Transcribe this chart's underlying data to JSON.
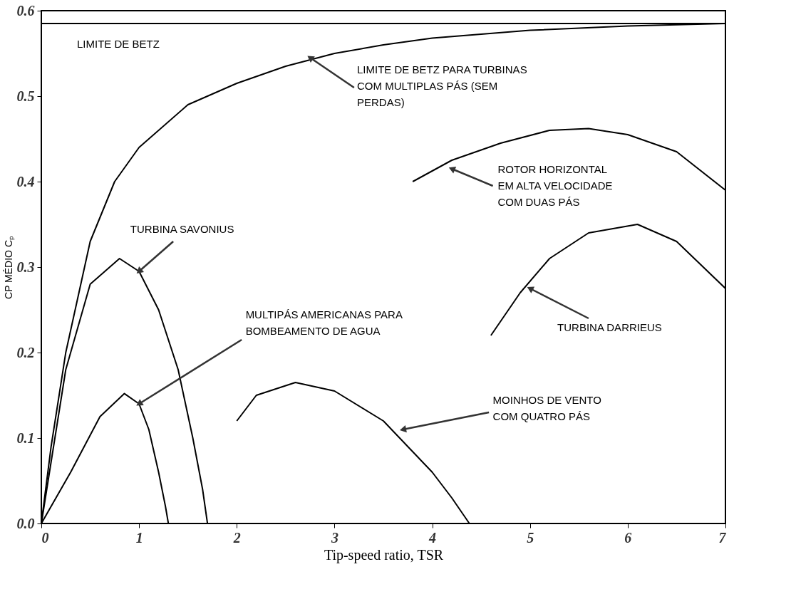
{
  "chart_data": {
    "type": "line",
    "xlabel": "Tip-speed ratio, TSR",
    "ylabel": "CP MÉDIO  Cₚ",
    "xlim": [
      0,
      7
    ],
    "xticks": [
      0,
      1,
      2,
      3,
      4,
      5,
      6,
      7
    ],
    "ylim": [
      0,
      0.6
    ],
    "yticks": [
      {
        "value": 0,
        "label": "0.0"
      },
      {
        "value": 0.1,
        "label": "0.1"
      },
      {
        "value": 0.2,
        "label": "0.2"
      },
      {
        "value": 0.3,
        "label": "0.3"
      },
      {
        "value": 0.4,
        "label": "0.4"
      },
      {
        "value": 0.5,
        "label": "0.5"
      },
      {
        "value": 0.6,
        "label": "0.6"
      }
    ],
    "grid": false,
    "legend": false,
    "marker": "none",
    "line_style": "solid",
    "series": [
      {
        "color": "#000000",
        "x": [
          0,
          0.1,
          0.25,
          0.5,
          0.75,
          1,
          1.5,
          2,
          2.5,
          3,
          3.5,
          4,
          5,
          6,
          7
        ],
        "values": [
          0,
          0.09,
          0.2,
          0.33,
          0.4,
          0.44,
          0.49,
          0.515,
          0.535,
          0.55,
          0.56,
          0.568,
          0.577,
          0.582,
          0.585
        ]
      },
      {
        "color": "#000000",
        "x": [
          0,
          0.25,
          0.5,
          0.8,
          1,
          1.2,
          1.4,
          1.55,
          1.65,
          1.7
        ],
        "values": [
          0,
          0.18,
          0.28,
          0.31,
          0.295,
          0.25,
          0.18,
          0.1,
          0.04,
          0
        ]
      },
      {
        "color": "#000000",
        "x": [
          0,
          0.3,
          0.6,
          0.85,
          1,
          1.1,
          1.2,
          1.27,
          1.3
        ],
        "values": [
          0,
          0.06,
          0.125,
          0.152,
          0.14,
          0.11,
          0.06,
          0.02,
          0
        ]
      },
      {
        "color": "#000000",
        "x": [
          2,
          2.2,
          2.6,
          3,
          3.5,
          4,
          4.2,
          4.38
        ],
        "values": [
          0.12,
          0.15,
          0.165,
          0.155,
          0.12,
          0.06,
          0.03,
          0
        ]
      },
      {
        "color": "#000000",
        "x": [
          3.8,
          4.2,
          4.7,
          5.2,
          5.6,
          6,
          6.5,
          7
        ],
        "values": [
          0.4,
          0.425,
          0.445,
          0.46,
          0.462,
          0.455,
          0.435,
          0.39
        ]
      },
      {
        "color": "#000000",
        "x": [
          4.6,
          4.9,
          5.2,
          5.6,
          6.1,
          6.5,
          7
        ],
        "values": [
          0.22,
          0.27,
          0.31,
          0.34,
          0.35,
          0.33,
          0.275
        ]
      }
    ],
    "ref_lines": [
      {
        "axis": "y",
        "value": 0.585,
        "label": "LIMITE DE BETZ",
        "color": "#000000"
      }
    ],
    "annotations": [
      {
        "text": "LIMITE DE BETZ PARA TURBINAS\nCOM MULTIPLAS PÁS (SEM\nPERDAS)",
        "x": 2.75,
        "y": 0.545
      },
      {
        "text": "ROTOR HORIZONTAL\nEM ALTA VELOCIDADE\nCOM DUAS PÁS",
        "x": 4.2,
        "y": 0.415
      },
      {
        "text": "TURBINA SAVONIUS",
        "x": 1.0,
        "y": 0.295
      },
      {
        "text": "MULTIPÁS AMERICANAS PARA\nBOMBEAMENTO DE AGUA",
        "x": 1.0,
        "y": 0.14
      },
      {
        "text": "MOINHOS DE VENTO\nCOM QUATRO PÁS",
        "x": 3.7,
        "y": 0.11
      },
      {
        "text": "TURBINA DARRIEUS",
        "x": 5.0,
        "y": 0.275
      }
    ]
  }
}
